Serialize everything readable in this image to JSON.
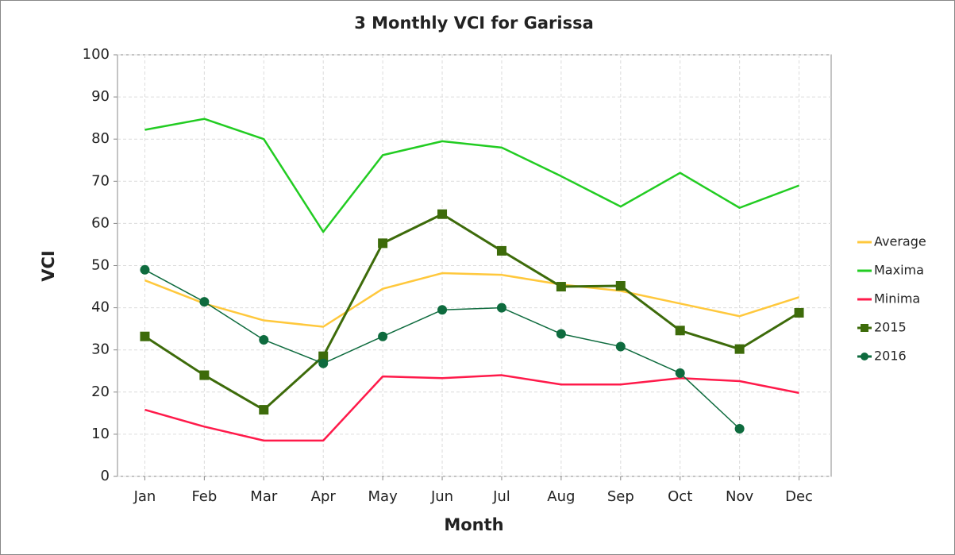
{
  "chart_data": {
    "type": "line",
    "title": "3 Monthly VCI for Garissa",
    "x_label": "Month",
    "y_label": "VCI",
    "categories": [
      "Jan",
      "Feb",
      "Mar",
      "Apr",
      "May",
      "Jun",
      "Jul",
      "Aug",
      "Sep",
      "Oct",
      "Nov",
      "Dec"
    ],
    "series": [
      {
        "name": "Average",
        "color": "#ffc83c",
        "values": [
          46.5,
          41,
          37,
          35.5,
          44.5,
          48.2,
          47.8,
          45.5,
          44,
          41,
          38,
          42.5
        ]
      },
      {
        "name": "Maxima",
        "color": "#22cc22",
        "values": [
          82.2,
          84.8,
          80,
          58,
          76.2,
          79.5,
          78,
          71.2,
          64,
          72,
          63.7,
          69
        ]
      },
      {
        "name": "Minima",
        "color": "#ff1a4a",
        "values": [
          15.8,
          11.8,
          8.5,
          8.5,
          23.7,
          23.3,
          24,
          21.8,
          21.8,
          23.3,
          22.6,
          19.8
        ]
      },
      {
        "name": "2015",
        "color": "#3d6b0a",
        "marker": "square",
        "values": [
          33.2,
          24,
          15.8,
          28.5,
          55.3,
          62.2,
          53.5,
          45,
          45.2,
          34.6,
          30.2,
          38.8
        ]
      },
      {
        "name": "2016",
        "color": "#0e6b3e",
        "marker": "circle",
        "values": [
          49,
          41.4,
          32.4,
          26.8,
          33.2,
          39.5,
          40,
          33.8,
          30.8,
          24.5,
          11.3,
          null
        ]
      }
    ],
    "ylim": [
      0,
      100
    ],
    "yticks": [
      0,
      10,
      20,
      30,
      40,
      50,
      60,
      70,
      80,
      90,
      100
    ],
    "grid": true,
    "legend": "right"
  }
}
